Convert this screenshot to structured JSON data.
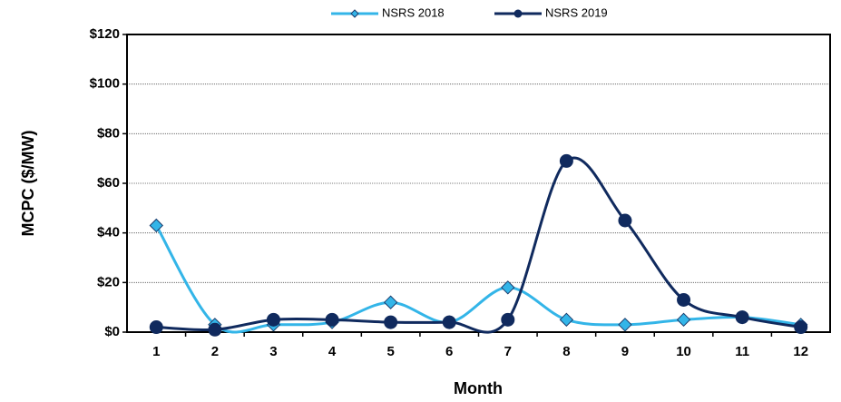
{
  "chart_data": {
    "type": "line",
    "xlabel": "Month",
    "ylabel": "MCPC ($/MW)",
    "categories": [
      "1",
      "2",
      "3",
      "4",
      "5",
      "6",
      "7",
      "8",
      "9",
      "10",
      "11",
      "12"
    ],
    "series": [
      {
        "name": "NSRS 2018",
        "color": "#33b5e8",
        "marker": "diamond",
        "values": [
          43,
          3,
          3,
          4,
          12,
          4,
          18,
          5,
          3,
          5,
          6,
          3
        ]
      },
      {
        "name": "NSRS 2019",
        "color": "#102a5e",
        "marker": "circle",
        "values": [
          2,
          1,
          5,
          5,
          4,
          4,
          5,
          69,
          45,
          13,
          6,
          2
        ]
      }
    ],
    "ylim": [
      0,
      120
    ],
    "yticks": [
      {
        "value": 0,
        "label": "$0"
      },
      {
        "value": 20,
        "label": "$20"
      },
      {
        "value": 40,
        "label": "$40"
      },
      {
        "value": 60,
        "label": "$60"
      },
      {
        "value": 80,
        "label": "$80"
      },
      {
        "value": 100,
        "label": "$100"
      },
      {
        "value": 120,
        "label": "$120"
      }
    ],
    "grid": true,
    "legend": "top",
    "smooth": true
  }
}
